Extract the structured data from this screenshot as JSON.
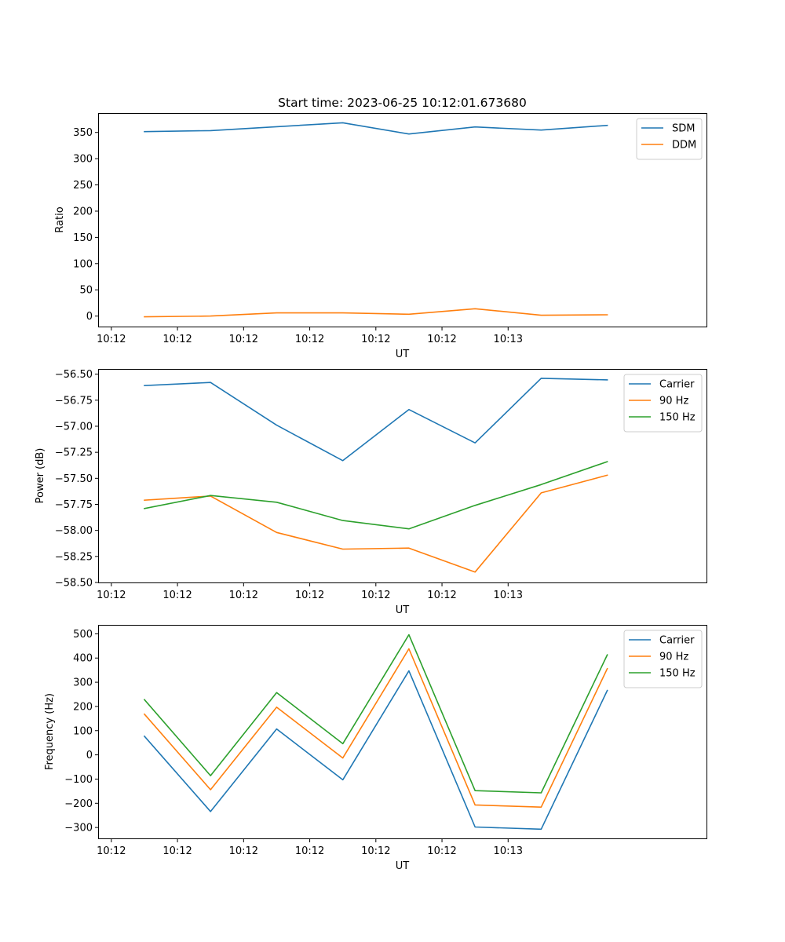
{
  "chart_data": [
    {
      "type": "line",
      "title": "Start time: 2023-06-25 10:12:01.673680",
      "xlabel": "UT",
      "ylabel": "Ratio",
      "x_tick_labels": [
        "10:12",
        "10:12",
        "10:12",
        "10:12",
        "10:12",
        "10:12",
        "10:13"
      ],
      "x": [
        0.5,
        1.5,
        2.5,
        3.5,
        4.5,
        5.5,
        6.5,
        7.5
      ],
      "xlim": [
        -0.2,
        9.0
      ],
      "ylim": [
        -20,
        387
      ],
      "y_ticks": [
        0,
        50,
        100,
        150,
        200,
        250,
        300,
        350
      ],
      "y_tick_labels": [
        "0",
        "50",
        "100",
        "150",
        "200",
        "250",
        "300",
        "350"
      ],
      "legend_position": "top-right",
      "grid": false,
      "series": [
        {
          "name": "SDM",
          "color": "#1f77b4",
          "values": [
            351.5,
            353.5,
            361,
            368.5,
            347,
            360.5,
            354.5,
            363.5
          ]
        },
        {
          "name": "DDM",
          "color": "#ff7f0e",
          "values": [
            -1.5,
            0,
            6,
            6,
            3.5,
            14,
            1.5,
            2.5
          ]
        }
      ]
    },
    {
      "type": "line",
      "title": "",
      "xlabel": "UT",
      "ylabel": "Power (dB)",
      "x_tick_labels": [
        "10:12",
        "10:12",
        "10:12",
        "10:12",
        "10:12",
        "10:12",
        "10:13"
      ],
      "x": [
        0.5,
        1.5,
        2.5,
        3.5,
        4.5,
        5.5,
        6.5,
        7.5
      ],
      "xlim": [
        -0.2,
        9.0
      ],
      "ylim": [
        -58.5,
        -56.45
      ],
      "y_ticks": [
        -58.5,
        -58.25,
        -58.0,
        -57.75,
        -57.5,
        -57.25,
        -57.0,
        -56.75,
        -56.5
      ],
      "y_tick_labels": [
        "−58.50",
        "−58.25",
        "−58.00",
        "−57.75",
        "−57.50",
        "−57.25",
        "−57.00",
        "−56.75",
        "−56.50"
      ],
      "legend_position": "top-right",
      "grid": false,
      "series": [
        {
          "name": "Carrier",
          "color": "#1f77b4",
          "values": [
            -56.61,
            -56.58,
            -56.99,
            -57.33,
            -56.84,
            -57.16,
            -56.54,
            -56.555
          ]
        },
        {
          "name": "90 Hz",
          "color": "#ff7f0e",
          "values": [
            -57.71,
            -57.67,
            -58.02,
            -58.18,
            -58.17,
            -58.4,
            -57.64,
            -57.47
          ]
        },
        {
          "name": "150 Hz",
          "color": "#2ca02c",
          "values": [
            -57.79,
            -57.665,
            -57.73,
            -57.905,
            -57.985,
            -57.76,
            -57.56,
            -57.34
          ]
        }
      ]
    },
    {
      "type": "line",
      "title": "",
      "xlabel": "UT",
      "ylabel": "Frequency (Hz)",
      "x_tick_labels": [
        "10:12",
        "10:12",
        "10:12",
        "10:12",
        "10:12",
        "10:12",
        "10:13"
      ],
      "x": [
        0.5,
        1.5,
        2.5,
        3.5,
        4.5,
        5.5,
        6.5,
        7.5
      ],
      "xlim": [
        -0.2,
        9.0
      ],
      "ylim": [
        -345,
        537
      ],
      "y_ticks": [
        -300,
        -200,
        -100,
        0,
        100,
        200,
        300,
        400,
        500
      ],
      "y_tick_labels": [
        "−300",
        "−200",
        "−100",
        "0",
        "100",
        "200",
        "300",
        "400",
        "500"
      ],
      "legend_position": "top-right",
      "grid": false,
      "series": [
        {
          "name": "Carrier",
          "color": "#1f77b4",
          "values": [
            77,
            -234,
            107,
            -103,
            347,
            -298,
            -307,
            266
          ]
        },
        {
          "name": "90 Hz",
          "color": "#ff7f0e",
          "values": [
            168,
            -144,
            197,
            -13,
            438,
            -207,
            -216,
            356
          ]
        },
        {
          "name": "150 Hz",
          "color": "#2ca02c",
          "values": [
            228,
            -86,
            257,
            46,
            496,
            -148,
            -157,
            413
          ]
        }
      ]
    }
  ]
}
